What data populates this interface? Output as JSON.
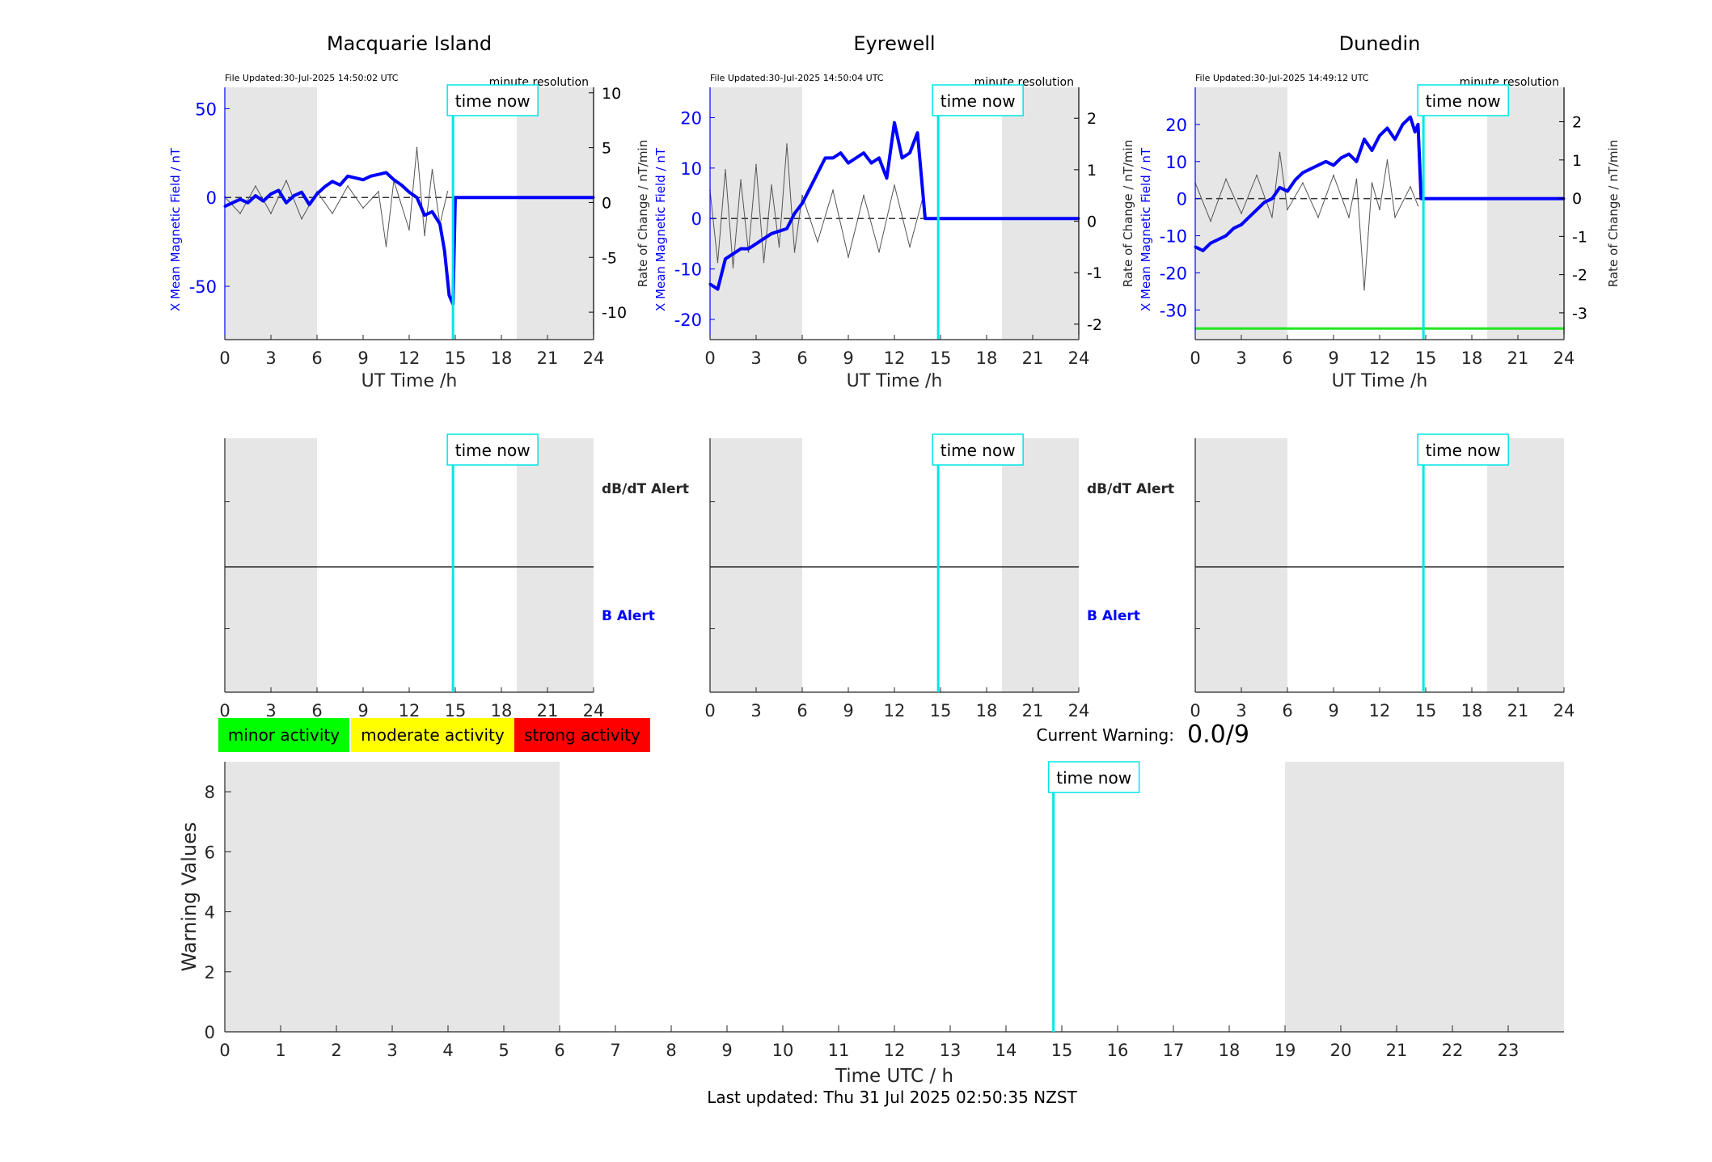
{
  "stations": [
    {
      "name": "Macquarie Island",
      "file_updated": "File Updated:30-Jul-2025 14:50:02 UTC",
      "resolution": "minute resolution",
      "time_now_label": "time now",
      "xlabel": "UT Time /h",
      "ylabel_left": "X Mean Magnetic Field / nT",
      "ylabel_right": "Rate of Change / nT/min",
      "left_ylim": [
        -80,
        62
      ],
      "left_ticks": [
        -50,
        0,
        50
      ],
      "right_ylim": [
        -12.5,
        10.5
      ],
      "right_ticks": [
        -10,
        -5,
        0,
        5,
        10
      ],
      "right_tick_labels": [
        "-10",
        "-5",
        "0",
        "5",
        "10"
      ],
      "x_ticks": [
        0,
        3,
        6,
        9,
        12,
        15,
        18,
        21,
        24
      ],
      "night_bands": [
        [
          0,
          6
        ],
        [
          19,
          24
        ]
      ],
      "time_now": 14.85,
      "field_series": [
        [
          0,
          -5
        ],
        [
          0.5,
          -3
        ],
        [
          1,
          -1
        ],
        [
          1.5,
          -3
        ],
        [
          2,
          1
        ],
        [
          2.5,
          -2
        ],
        [
          3,
          2
        ],
        [
          3.5,
          4
        ],
        [
          4,
          -3
        ],
        [
          4.5,
          1
        ],
        [
          5,
          3
        ],
        [
          5.5,
          -4
        ],
        [
          6,
          2
        ],
        [
          6.5,
          6
        ],
        [
          7,
          9
        ],
        [
          7.5,
          7
        ],
        [
          8,
          12
        ],
        [
          8.5,
          11
        ],
        [
          9,
          10
        ],
        [
          9.5,
          12
        ],
        [
          10,
          13
        ],
        [
          10.5,
          14
        ],
        [
          11,
          10
        ],
        [
          11.5,
          7
        ],
        [
          12,
          3
        ],
        [
          12.5,
          0
        ],
        [
          13,
          -10
        ],
        [
          13.5,
          -8
        ],
        [
          14,
          -15
        ],
        [
          14.3,
          -30
        ],
        [
          14.6,
          -55
        ],
        [
          14.85,
          -60
        ],
        [
          15,
          0
        ],
        [
          24,
          0
        ]
      ],
      "rate_series": [
        [
          0,
          0.5
        ],
        [
          1,
          -1
        ],
        [
          2,
          1.5
        ],
        [
          3,
          -1
        ],
        [
          4,
          2
        ],
        [
          5,
          -1.5
        ],
        [
          6,
          1
        ],
        [
          7,
          -1
        ],
        [
          8,
          1.5
        ],
        [
          9,
          -0.5
        ],
        [
          10,
          1
        ],
        [
          10.5,
          -4
        ],
        [
          11,
          2
        ],
        [
          12,
          -2.5
        ],
        [
          12.5,
          5
        ],
        [
          13,
          -3
        ],
        [
          13.5,
          3
        ],
        [
          14,
          -2
        ],
        [
          14.5,
          1
        ]
      ],
      "dBdt_alert": "dB/dT Alert",
      "B_alert": "B Alert",
      "alert_panel_ticks": [
        0,
        3,
        6,
        9,
        12,
        15,
        18,
        21,
        24
      ]
    },
    {
      "name": "Eyrewell",
      "file_updated": "File Updated:30-Jul-2025 14:50:04 UTC",
      "resolution": "minute resolution",
      "time_now_label": "time now",
      "xlabel": "UT Time /h",
      "ylabel_left": "X Mean Magnetic Field / nT",
      "ylabel_right": "Rate of Change / nT/min",
      "left_ylim": [
        -24,
        26
      ],
      "left_ticks": [
        -20,
        -10,
        0,
        10,
        20
      ],
      "right_ylim": [
        -2.3,
        2.6
      ],
      "right_ticks": [
        -2,
        -1,
        0,
        1,
        2
      ],
      "right_tick_labels": [
        "-2",
        "-1",
        "0",
        "1",
        "2"
      ],
      "x_ticks": [
        0,
        3,
        6,
        9,
        12,
        15,
        18,
        21,
        24
      ],
      "night_bands": [
        [
          0,
          6
        ],
        [
          19,
          24
        ]
      ],
      "time_now": 14.85,
      "field_series": [
        [
          0,
          -13
        ],
        [
          0.5,
          -14
        ],
        [
          1,
          -8
        ],
        [
          1.5,
          -7
        ],
        [
          2,
          -6
        ],
        [
          2.5,
          -6
        ],
        [
          3,
          -5
        ],
        [
          3.5,
          -4
        ],
        [
          4,
          -3
        ],
        [
          5,
          -2
        ],
        [
          5.5,
          1
        ],
        [
          6,
          3
        ],
        [
          6.5,
          6
        ],
        [
          7,
          9
        ],
        [
          7.5,
          12
        ],
        [
          8,
          12
        ],
        [
          8.5,
          13
        ],
        [
          9,
          11
        ],
        [
          9.5,
          12
        ],
        [
          10,
          13
        ],
        [
          10.5,
          11
        ],
        [
          11,
          12
        ],
        [
          11.5,
          8
        ],
        [
          12,
          19
        ],
        [
          12.5,
          12
        ],
        [
          13,
          13
        ],
        [
          13.5,
          17
        ],
        [
          14,
          0
        ],
        [
          24,
          0
        ]
      ],
      "rate_series": [
        [
          0,
          0.6
        ],
        [
          0.5,
          -0.8
        ],
        [
          1,
          1.0
        ],
        [
          1.5,
          -0.9
        ],
        [
          2,
          0.8
        ],
        [
          2.5,
          -0.6
        ],
        [
          3,
          1.1
        ],
        [
          3.5,
          -0.8
        ],
        [
          4,
          0.7
        ],
        [
          4.5,
          -0.5
        ],
        [
          5,
          1.5
        ],
        [
          5.5,
          -0.6
        ],
        [
          6,
          0.5
        ],
        [
          7,
          -0.4
        ],
        [
          8,
          0.6
        ],
        [
          9,
          -0.7
        ],
        [
          10,
          0.5
        ],
        [
          11,
          -0.6
        ],
        [
          12,
          0.7
        ],
        [
          13,
          -0.5
        ],
        [
          13.8,
          0.4
        ]
      ],
      "dBdt_alert": "dB/dT Alert",
      "B_alert": "B Alert",
      "alert_panel_ticks": [
        0,
        3,
        6,
        9,
        12,
        15,
        18,
        21,
        24
      ]
    },
    {
      "name": "Dunedin",
      "file_updated": "File Updated:30-Jul-2025 14:49:12 UTC",
      "resolution": "minute resolution",
      "time_now_label": "time now",
      "xlabel": "UT Time /h",
      "ylabel_left": "X Mean Magnetic Field / nT",
      "ylabel_right": "Rate of Change / nT/min",
      "left_ylim": [
        -38,
        30
      ],
      "left_ticks": [
        -30,
        -20,
        -10,
        0,
        10,
        20
      ],
      "right_ylim": [
        -3.7,
        2.9
      ],
      "right_ticks": [
        -3,
        -2,
        -1,
        0,
        1,
        2
      ],
      "right_tick_labels": [
        "-3",
        "-2",
        "-1",
        "0",
        "1",
        "2"
      ],
      "x_ticks": [
        0,
        3,
        6,
        9,
        12,
        15,
        18,
        21,
        24
      ],
      "night_bands": [
        [
          0,
          6
        ],
        [
          19,
          24
        ]
      ],
      "time_now": 14.85,
      "threshold_value": -35,
      "field_series": [
        [
          0,
          -13
        ],
        [
          0.5,
          -14
        ],
        [
          1,
          -12
        ],
        [
          1.5,
          -11
        ],
        [
          2,
          -10
        ],
        [
          2.5,
          -8
        ],
        [
          3,
          -7
        ],
        [
          3.5,
          -5
        ],
        [
          4,
          -3
        ],
        [
          4.5,
          -1
        ],
        [
          5,
          0
        ],
        [
          5.5,
          3
        ],
        [
          6,
          2
        ],
        [
          6.5,
          5
        ],
        [
          7,
          7
        ],
        [
          7.5,
          8
        ],
        [
          8,
          9
        ],
        [
          8.5,
          10
        ],
        [
          9,
          9
        ],
        [
          9.5,
          11
        ],
        [
          10,
          12
        ],
        [
          10.5,
          10
        ],
        [
          11,
          16
        ],
        [
          11.5,
          13
        ],
        [
          12,
          17
        ],
        [
          12.5,
          19
        ],
        [
          13,
          16
        ],
        [
          13.5,
          20
        ],
        [
          14,
          22
        ],
        [
          14.3,
          18
        ],
        [
          14.5,
          20
        ],
        [
          14.7,
          0
        ],
        [
          24,
          0
        ]
      ],
      "rate_series": [
        [
          0,
          0.4
        ],
        [
          1,
          -0.6
        ],
        [
          2,
          0.5
        ],
        [
          3,
          -0.4
        ],
        [
          4,
          0.6
        ],
        [
          5,
          -0.5
        ],
        [
          5.5,
          1.2
        ],
        [
          6,
          -0.3
        ],
        [
          7,
          0.4
        ],
        [
          8,
          -0.5
        ],
        [
          9,
          0.6
        ],
        [
          10,
          -0.5
        ],
        [
          10.5,
          0.5
        ],
        [
          11,
          -2.4
        ],
        [
          11.5,
          0.4
        ],
        [
          12,
          -0.3
        ],
        [
          12.5,
          1.0
        ],
        [
          13,
          -0.5
        ],
        [
          14,
          0.3
        ],
        [
          14.5,
          -0.2
        ]
      ],
      "dBdt_alert": "",
      "B_alert": "",
      "alert_panel_ticks": [
        0,
        3,
        6,
        9,
        12,
        15,
        18,
        21,
        24
      ]
    }
  ],
  "legend": {
    "minor": {
      "label": "minor activity",
      "color": "#00ff00"
    },
    "moderate": {
      "label": "moderate activity",
      "color": "#ffff00"
    },
    "strong": {
      "label": "strong activity",
      "color": "#ff0000"
    }
  },
  "current_warning": {
    "label": "Current Warning:",
    "value": "0.0/9"
  },
  "chart_data": {
    "type": "line",
    "title": "",
    "xlabel": "Time UTC / h",
    "ylabel": "Warning Values",
    "xlim": [
      0,
      24
    ],
    "ylim": [
      0,
      9
    ],
    "x_ticks": [
      0,
      1,
      2,
      3,
      4,
      5,
      6,
      7,
      8,
      9,
      10,
      11,
      12,
      13,
      14,
      15,
      16,
      17,
      18,
      19,
      20,
      21,
      22,
      23
    ],
    "y_ticks": [
      0,
      2,
      4,
      6,
      8
    ],
    "night_bands": [
      [
        0,
        6
      ],
      [
        19,
        24
      ]
    ],
    "time_now": 14.85,
    "time_now_label": "time now",
    "series": [],
    "grid": false
  },
  "footer": {
    "last_updated": "Last updated: Thu 31 Jul 2025 02:50:35 NZST"
  },
  "colors": {
    "field": "#0000ff",
    "rate": "#555555",
    "night": "#e6e6e6",
    "time_now": "#00e6e6",
    "axis": "#262626"
  }
}
